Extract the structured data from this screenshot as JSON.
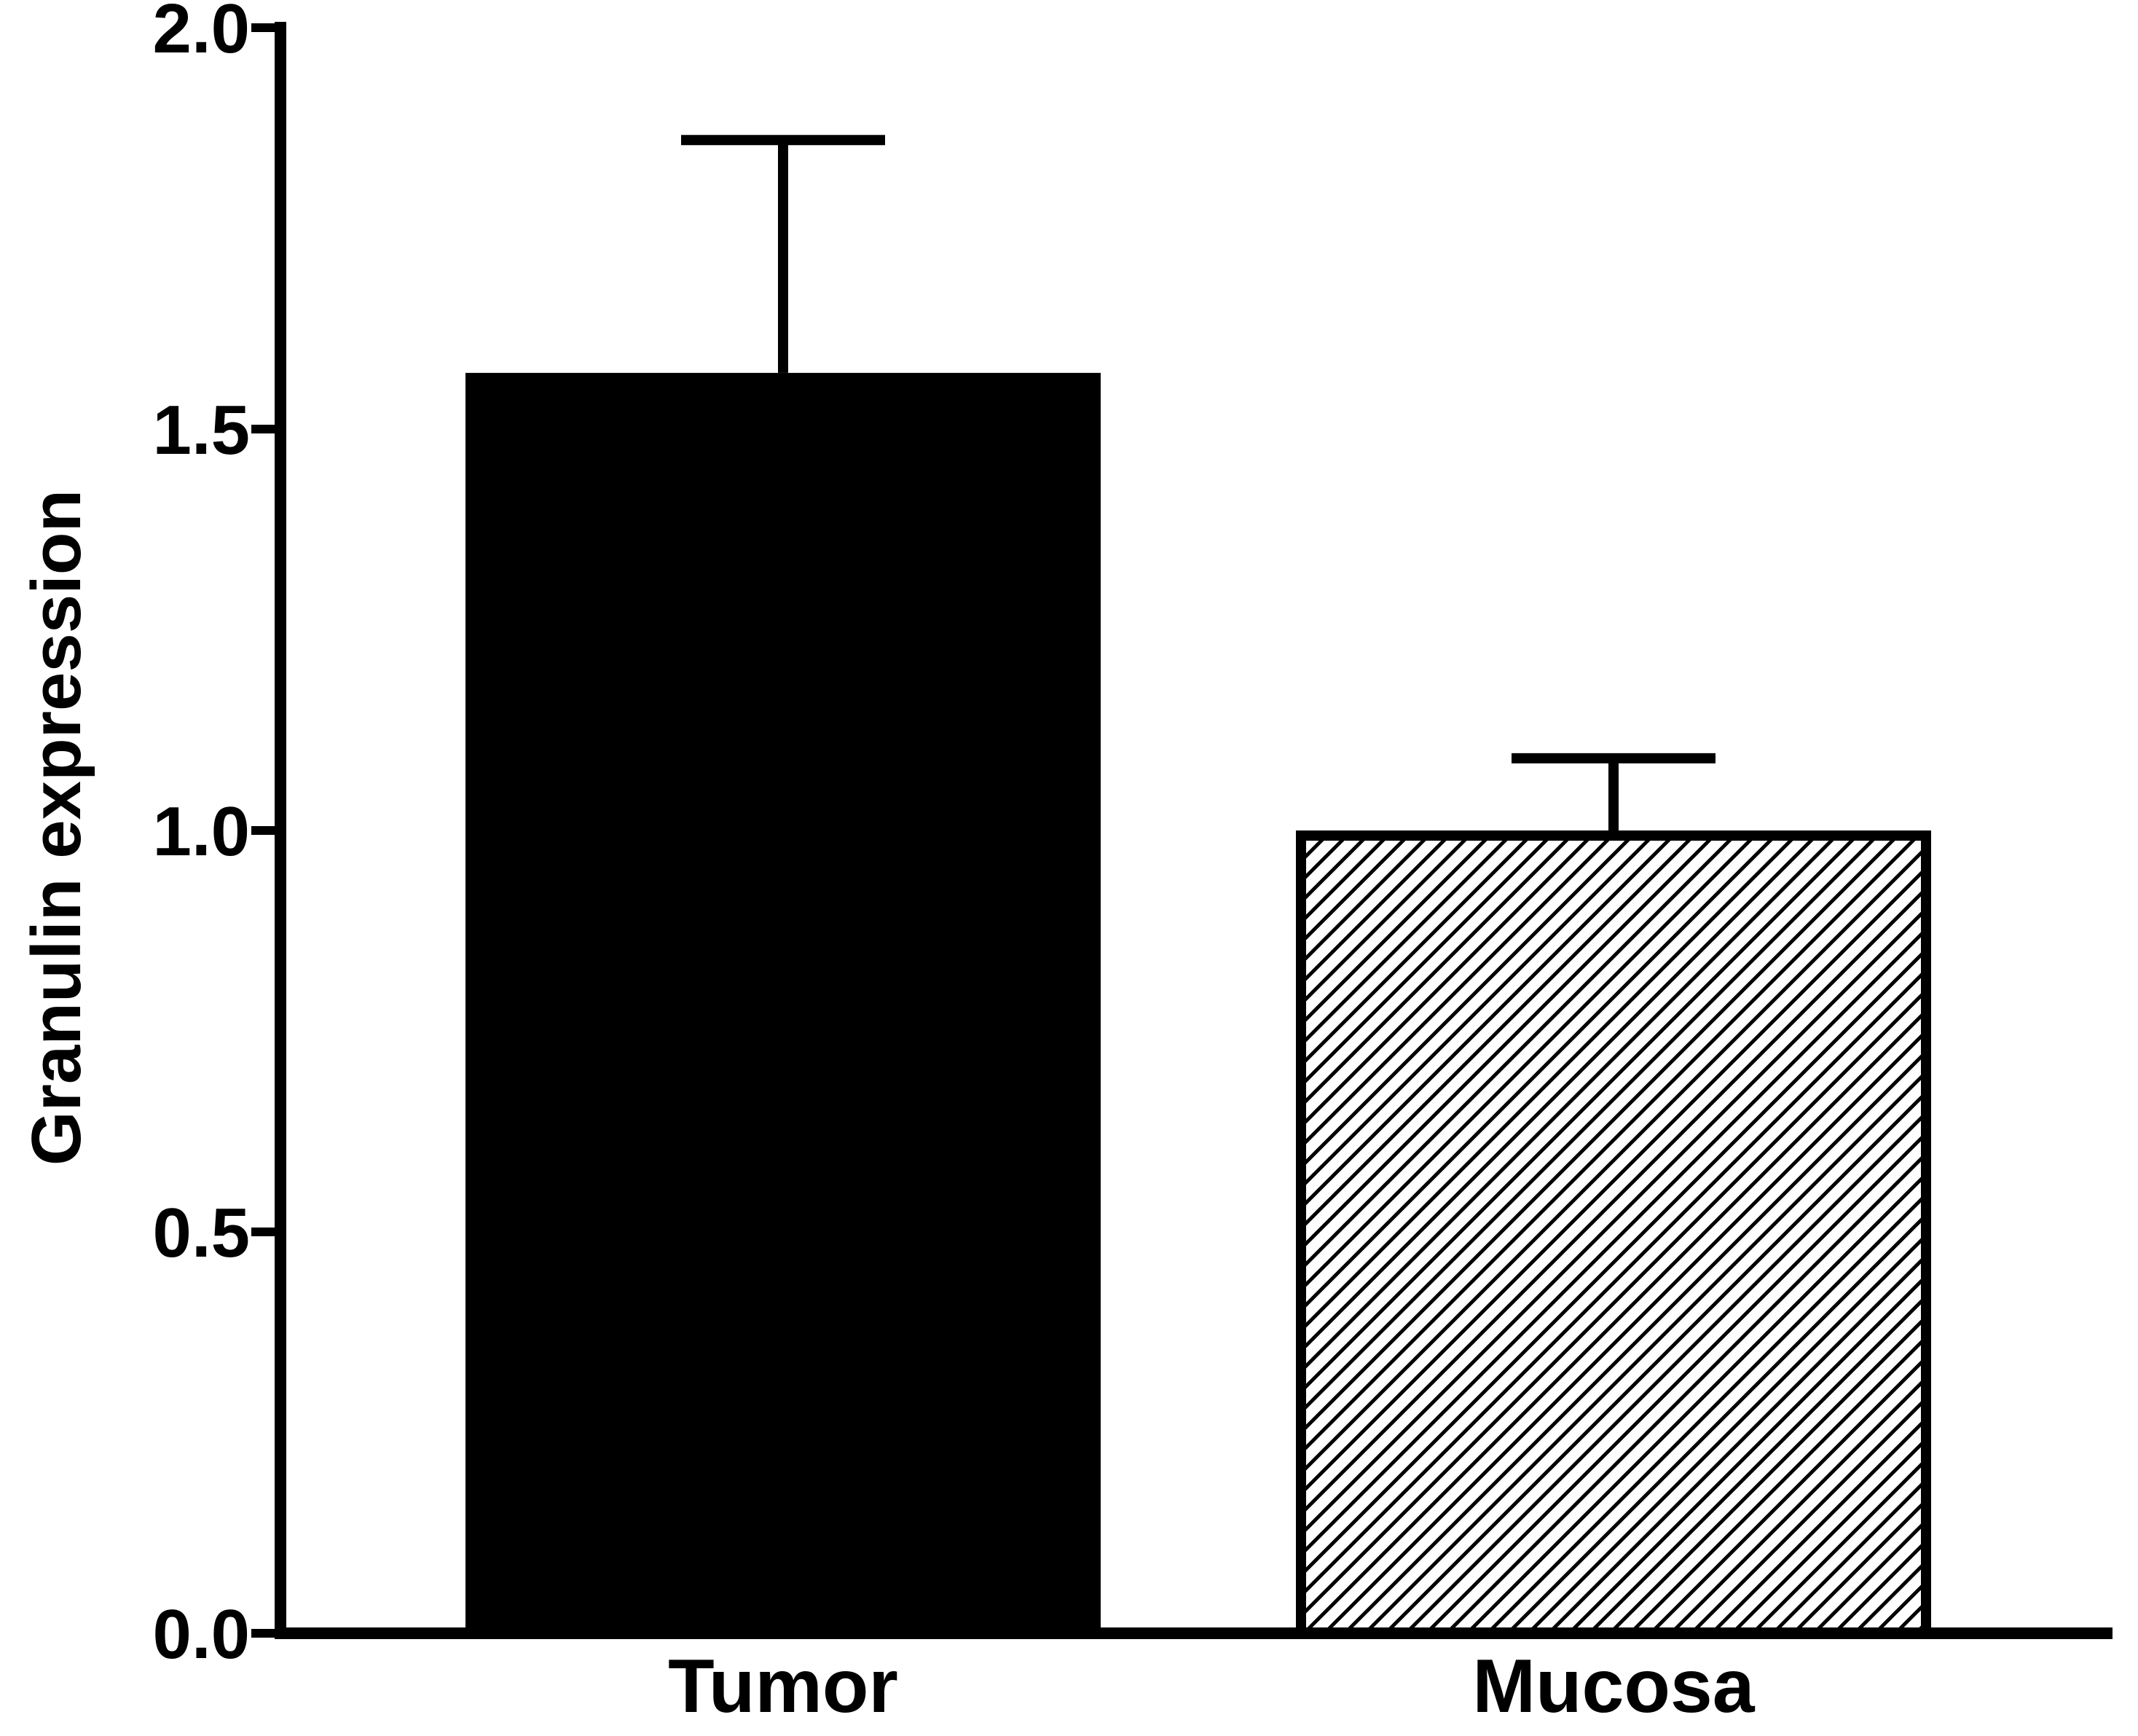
{
  "chart_data": {
    "type": "bar",
    "title": "",
    "xlabel": "",
    "ylabel": "Granulin expression",
    "ylim": [
      0,
      2.0
    ],
    "yticks": [
      0.0,
      0.5,
      1.0,
      1.5,
      2.0
    ],
    "ytick_labels": [
      "0.0",
      "0.5",
      "1.0",
      "1.5",
      "2.0"
    ],
    "categories": [
      "Tumor",
      "Mucosa"
    ],
    "values": [
      1.57,
      1.0
    ],
    "error_upper": [
      1.86,
      1.09
    ],
    "bar_styles": [
      "solid",
      "hatched"
    ],
    "colors": {
      "tumor_fill": "#000000",
      "mucosa_fill": "#ffffff",
      "stroke": "#000000"
    },
    "grid": false,
    "legend": "none"
  }
}
